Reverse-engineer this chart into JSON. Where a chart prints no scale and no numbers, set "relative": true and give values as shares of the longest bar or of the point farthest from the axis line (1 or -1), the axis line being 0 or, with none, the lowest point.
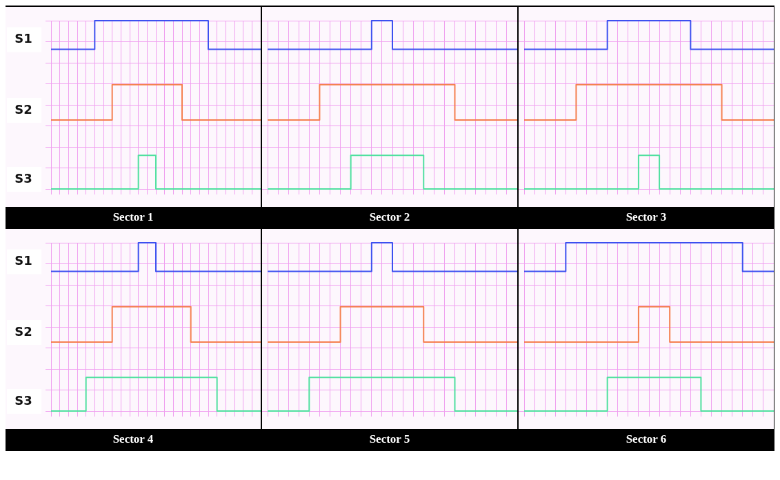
{
  "chart_data": [
    {
      "type": "step",
      "title": "Sector 1",
      "relative": true,
      "grid": true,
      "legend": false,
      "marker": "none",
      "tick_labels": false,
      "categories": [
        null,
        null,
        null,
        null,
        null,
        null,
        null,
        null,
        null,
        null,
        null,
        null,
        null,
        null,
        null,
        null,
        null,
        null,
        null,
        null,
        null,
        null,
        null,
        null,
        null
      ],
      "series": [
        {
          "name": "S1",
          "color": "#3c50f0",
          "values": [
            0.83,
            0.83,
            0.83,
            0.83,
            0.83,
            0.83,
            1,
            1,
            1,
            1,
            1,
            1,
            1,
            1,
            1,
            1,
            1,
            1,
            1,
            0.83,
            0.83,
            0.83,
            0.83,
            0.83,
            0.83
          ]
        },
        {
          "name": "S2",
          "color": "#f58050",
          "values": [
            0.41,
            0.41,
            0.41,
            0.41,
            0.41,
            0.41,
            0.41,
            0.41,
            0.62,
            0.62,
            0.62,
            0.62,
            0.62,
            0.62,
            0.62,
            0.62,
            0.41,
            0.41,
            0.41,
            0.41,
            0.41,
            0.41,
            0.41,
            0.41,
            0.41
          ]
        },
        {
          "name": "S3",
          "color": "#50e0a0",
          "values": [
            0,
            0,
            0,
            0,
            0,
            0,
            0,
            0,
            0,
            0,
            0,
            0.2,
            0.2,
            0,
            0,
            0,
            0,
            0,
            0,
            0,
            0,
            0,
            0,
            0,
            0
          ]
        }
      ]
    },
    {
      "type": "step",
      "title": "Sector 2",
      "relative": true,
      "grid": true,
      "legend": false,
      "marker": "none",
      "tick_labels": false,
      "categories": [
        null,
        null,
        null,
        null,
        null,
        null,
        null,
        null,
        null,
        null,
        null,
        null,
        null,
        null,
        null,
        null,
        null,
        null,
        null,
        null,
        null,
        null,
        null,
        null,
        null
      ],
      "series": [
        {
          "color": "#3c50f0",
          "values": [
            0.83,
            0.83,
            0.83,
            0.83,
            0.83,
            0.83,
            0.83,
            0.83,
            0.83,
            0.83,
            0.83,
            1,
            1,
            0.83,
            0.83,
            0.83,
            0.83,
            0.83,
            0.83,
            0.83,
            0.83,
            0.83,
            0.83,
            0.83,
            0.83
          ]
        },
        {
          "color": "#f58050",
          "values": [
            0.41,
            0.41,
            0.41,
            0.41,
            0.41,
            0.41,
            0.62,
            0.62,
            0.62,
            0.62,
            0.62,
            0.62,
            0.62,
            0.62,
            0.62,
            0.62,
            0.62,
            0.62,
            0.62,
            0.41,
            0.41,
            0.41,
            0.41,
            0.41,
            0.41
          ]
        },
        {
          "color": "#50e0a0",
          "values": [
            0,
            0,
            0,
            0,
            0,
            0,
            0,
            0,
            0,
            0.2,
            0.2,
            0.2,
            0.2,
            0.2,
            0.2,
            0.2,
            0,
            0,
            0,
            0,
            0,
            0,
            0,
            0,
            0
          ]
        }
      ]
    },
    {
      "type": "step",
      "title": "Sector 3",
      "relative": true,
      "grid": true,
      "legend": false,
      "marker": "none",
      "tick_labels": false,
      "categories": [
        null,
        null,
        null,
        null,
        null,
        null,
        null,
        null,
        null,
        null,
        null,
        null,
        null,
        null,
        null,
        null,
        null,
        null,
        null,
        null,
        null,
        null,
        null,
        null,
        null
      ],
      "series": [
        {
          "color": "#3c50f0",
          "values": [
            0.83,
            0.83,
            0.83,
            0.83,
            0.83,
            0.83,
            0.83,
            0.83,
            0.83,
            1,
            1,
            1,
            1,
            1,
            1,
            1,
            1,
            0.83,
            0.83,
            0.83,
            0.83,
            0.83,
            0.83,
            0.83,
            0.83
          ]
        },
        {
          "color": "#f58050",
          "values": [
            0.41,
            0.41,
            0.41,
            0.41,
            0.41,
            0.41,
            0.62,
            0.62,
            0.62,
            0.62,
            0.62,
            0.62,
            0.62,
            0.62,
            0.62,
            0.62,
            0.62,
            0.62,
            0.62,
            0.62,
            0.41,
            0.41,
            0.41,
            0.41,
            0.41
          ]
        },
        {
          "color": "#50e0a0",
          "values": [
            0,
            0,
            0,
            0,
            0,
            0,
            0,
            0,
            0,
            0,
            0,
            0,
            0.2,
            0.2,
            0,
            0,
            0,
            0,
            0,
            0,
            0,
            0,
            0,
            0,
            0
          ]
        }
      ]
    },
    {
      "type": "step",
      "title": "Sector 4",
      "relative": true,
      "grid": true,
      "legend": false,
      "marker": "none",
      "tick_labels": false,
      "categories": [
        null,
        null,
        null,
        null,
        null,
        null,
        null,
        null,
        null,
        null,
        null,
        null,
        null,
        null,
        null,
        null,
        null,
        null,
        null,
        null,
        null,
        null,
        null,
        null,
        null
      ],
      "series": [
        {
          "name": "S1",
          "color": "#3c50f0",
          "values": [
            0.83,
            0.83,
            0.83,
            0.83,
            0.83,
            0.83,
            0.83,
            0.83,
            0.83,
            0.83,
            0.83,
            1,
            1,
            0.83,
            0.83,
            0.83,
            0.83,
            0.83,
            0.83,
            0.83,
            0.83,
            0.83,
            0.83,
            0.83,
            0.83
          ]
        },
        {
          "name": "S2",
          "color": "#f58050",
          "values": [
            0.41,
            0.41,
            0.41,
            0.41,
            0.41,
            0.41,
            0.41,
            0.41,
            0.62,
            0.62,
            0.62,
            0.62,
            0.62,
            0.62,
            0.62,
            0.62,
            0.62,
            0.41,
            0.41,
            0.41,
            0.41,
            0.41,
            0.41,
            0.41,
            0.41
          ]
        },
        {
          "name": "S3",
          "color": "#50e0a0",
          "values": [
            0,
            0,
            0,
            0,
            0,
            0.2,
            0.2,
            0.2,
            0.2,
            0.2,
            0.2,
            0.2,
            0.2,
            0.2,
            0.2,
            0.2,
            0.2,
            0.2,
            0.2,
            0.2,
            0,
            0,
            0,
            0,
            0
          ]
        }
      ]
    },
    {
      "type": "step",
      "title": "Sector 5",
      "relative": true,
      "grid": true,
      "legend": false,
      "marker": "none",
      "tick_labels": false,
      "categories": [
        null,
        null,
        null,
        null,
        null,
        null,
        null,
        null,
        null,
        null,
        null,
        null,
        null,
        null,
        null,
        null,
        null,
        null,
        null,
        null,
        null,
        null,
        null,
        null,
        null
      ],
      "series": [
        {
          "color": "#3c50f0",
          "values": [
            0.83,
            0.83,
            0.83,
            0.83,
            0.83,
            0.83,
            0.83,
            0.83,
            0.83,
            0.83,
            0.83,
            1,
            1,
            0.83,
            0.83,
            0.83,
            0.83,
            0.83,
            0.83,
            0.83,
            0.83,
            0.83,
            0.83,
            0.83,
            0.83
          ]
        },
        {
          "color": "#f58050",
          "values": [
            0.41,
            0.41,
            0.41,
            0.41,
            0.41,
            0.41,
            0.41,
            0.41,
            0.62,
            0.62,
            0.62,
            0.62,
            0.62,
            0.62,
            0.62,
            0.62,
            0.41,
            0.41,
            0.41,
            0.41,
            0.41,
            0.41,
            0.41,
            0.41,
            0.41
          ]
        },
        {
          "color": "#50e0a0",
          "values": [
            0,
            0,
            0,
            0,
            0,
            0.2,
            0.2,
            0.2,
            0.2,
            0.2,
            0.2,
            0.2,
            0.2,
            0.2,
            0.2,
            0.2,
            0.2,
            0.2,
            0.2,
            0,
            0,
            0,
            0,
            0,
            0
          ]
        }
      ]
    },
    {
      "type": "step",
      "title": "Sector 6",
      "relative": true,
      "grid": true,
      "legend": false,
      "marker": "none",
      "tick_labels": false,
      "categories": [
        null,
        null,
        null,
        null,
        null,
        null,
        null,
        null,
        null,
        null,
        null,
        null,
        null,
        null,
        null,
        null,
        null,
        null,
        null,
        null,
        null,
        null,
        null,
        null,
        null
      ],
      "series": [
        {
          "color": "#3c50f0",
          "values": [
            0.83,
            0.83,
            0.83,
            0.83,
            0.83,
            1,
            1,
            1,
            1,
            1,
            1,
            1,
            1,
            1,
            1,
            1,
            1,
            1,
            1,
            1,
            1,
            1,
            0.83,
            0.83,
            0.83
          ]
        },
        {
          "color": "#f58050",
          "values": [
            0.41,
            0.41,
            0.41,
            0.41,
            0.41,
            0.41,
            0.41,
            0.41,
            0.41,
            0.41,
            0.41,
            0.41,
            0.62,
            0.62,
            0.62,
            0.41,
            0.41,
            0.41,
            0.41,
            0.41,
            0.41,
            0.41,
            0.41,
            0.41,
            0.41
          ]
        },
        {
          "color": "#50e0a0",
          "values": [
            0,
            0,
            0,
            0,
            0,
            0,
            0,
            0,
            0,
            0.2,
            0.2,
            0.2,
            0.2,
            0.2,
            0.2,
            0.2,
            0.2,
            0.2,
            0,
            0,
            0,
            0,
            0,
            0,
            0
          ]
        }
      ]
    }
  ]
}
